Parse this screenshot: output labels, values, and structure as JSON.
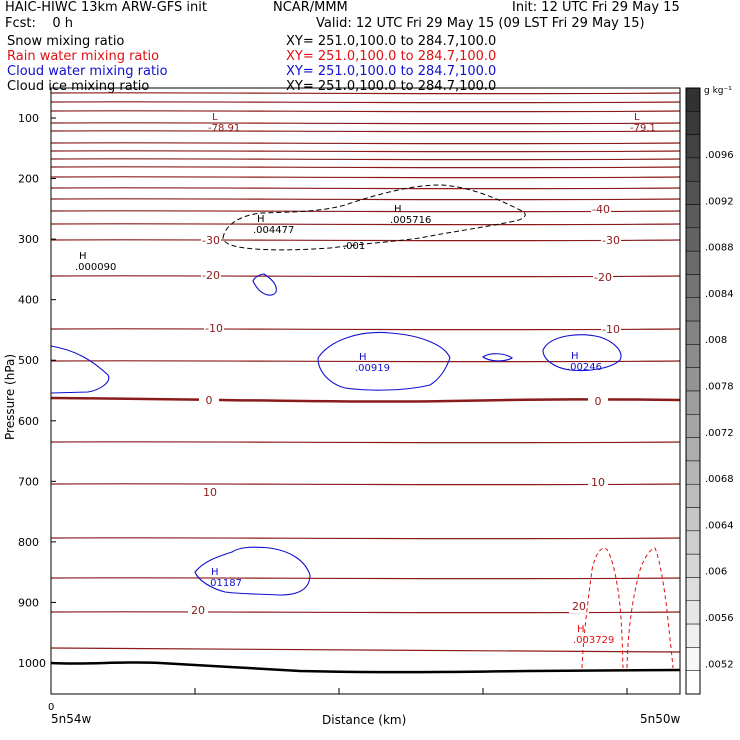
{
  "header": {
    "model": "HAIC-HIWC 13km ARW-GFS init",
    "org": "NCAR/MMM",
    "init": "Init: 12 UTC Fri 29 May 15",
    "fcst": "Fcst:    0 h",
    "valid": "Valid: 12 UTC Fri 29 May 15 (09 LST Fri 29 May 15)"
  },
  "fields": [
    {
      "name": "Snow mixing ratio",
      "xy": "XY= 251.0,100.0 to 284.7,100.0",
      "color": "#000000"
    },
    {
      "name": "Rain water mixing ratio",
      "xy": "XY= 251.0,100.0 to 284.7,100.0",
      "color": "#e01010"
    },
    {
      "name": "Cloud water mixing ratio",
      "xy": "XY= 251.0,100.0 to 284.7,100.0",
      "color": "#1010d0"
    },
    {
      "name": "Cloud ice mixing ratio",
      "xy": "XY= 251.0,100.0 to 284.7,100.0",
      "color": "#000000"
    }
  ],
  "colorbar": {
    "unit": "g kg⁻¹",
    "labels": [
      ".0096",
      ".0092",
      ".0088",
      ".0084",
      ".008",
      ".0078",
      ".0072",
      ".0068",
      ".0064",
      ".006",
      ".0056",
      ".0052"
    ]
  },
  "colors": {
    "temperature": "#8b1a1a",
    "cloud_water": "#1010d0",
    "rain_water": "#e01010",
    "snow": "#000000",
    "terrain": "#000000"
  },
  "chart_data": {
    "type": "cross-section",
    "xlabel": "Distance (km)",
    "ylabel": "Pressure (hPa)",
    "x_start_label": "5n54w",
    "x_end_label": "5n50w",
    "x_zero_label": "0",
    "yticks": [
      100,
      200,
      300,
      400,
      500,
      600,
      700,
      800,
      900,
      1000
    ],
    "ylim": [
      1050,
      40
    ],
    "y_scale": "linear",
    "isotherm_labels": [
      "-40",
      "-30",
      "-20",
      "-10",
      "0",
      "10",
      "20"
    ],
    "annotations": [
      {
        "label": "L",
        "value": "-78.91",
        "field": "temperature"
      },
      {
        "label": "L",
        "value": "-79.1",
        "field": "temperature"
      },
      {
        "label": "H",
        "value": ".004477",
        "field": "snow"
      },
      {
        "label": "H",
        "value": ".005716",
        "field": "snow"
      },
      {
        "label": "H",
        "value": ".000090",
        "field": "snow"
      },
      {
        "label": "",
        "value": ".001",
        "field": "snow"
      },
      {
        "label": "H",
        "value": ".00919",
        "field": "cloud_water"
      },
      {
        "label": "H",
        "value": ".00246",
        "field": "cloud_water"
      },
      {
        "label": "H",
        "value": ".01187",
        "field": "cloud_water"
      },
      {
        "label": "H",
        "value": ".003729",
        "field": "rain_water"
      }
    ]
  }
}
